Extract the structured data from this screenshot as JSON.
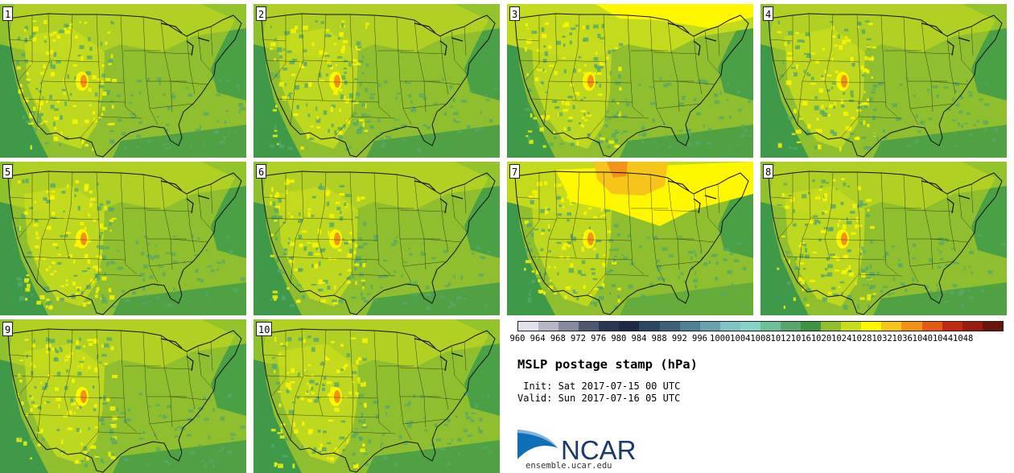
{
  "panels": [
    {
      "label": "1",
      "variant": 0
    },
    {
      "label": "2",
      "variant": 1
    },
    {
      "label": "3",
      "variant": 2
    },
    {
      "label": "4",
      "variant": 3
    },
    {
      "label": "5",
      "variant": 0
    },
    {
      "label": "6",
      "variant": 1
    },
    {
      "label": "7",
      "variant": 4
    },
    {
      "label": "8",
      "variant": 3
    },
    {
      "label": "9",
      "variant": 0
    },
    {
      "label": "10",
      "variant": 1
    }
  ],
  "colorbar": {
    "ticks": [
      "960",
      "964",
      "968",
      "972",
      "976",
      "980",
      "984",
      "988",
      "992",
      "996",
      "1000",
      "1004",
      "1008",
      "1012",
      "1016",
      "1020",
      "1024",
      "1028",
      "1032",
      "1036",
      "1040",
      "1044",
      "1048"
    ],
    "colors": [
      "#e1e1ea",
      "#b6b6c6",
      "#868aa0",
      "#4e5670",
      "#2b3650",
      "#1e2a44",
      "#2b4660",
      "#3d5f78",
      "#4f7f92",
      "#67a2ad",
      "#7fc3c3",
      "#86d3c7",
      "#6fbf99",
      "#58a66e",
      "#3f9444",
      "#8fbf2e",
      "#c7dc1c",
      "#fff700",
      "#f7c51a",
      "#f39217",
      "#e45a12",
      "#c12a10",
      "#991c0f",
      "#6a150c"
    ]
  },
  "title": "MSLP postage stamp (hPa)",
  "init": " Init: Sat 2017-07-15 00 UTC",
  "valid": "Valid: Sun 2017-07-16 05 UTC",
  "logo_text": "NCAR",
  "site": "ensemble.ucar.edu",
  "map_colors": {
    "ocean": "#3e9a48",
    "plains": "#8fbf2e",
    "light": "#c7dc1c",
    "high": "#fff700",
    "peak": "#f39217",
    "peak2": "#f7c51a",
    "low": "#55a86a"
  }
}
